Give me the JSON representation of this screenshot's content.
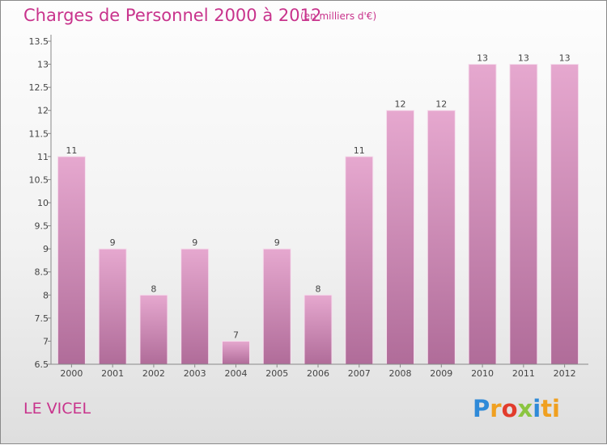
{
  "header": {
    "title": "Charges de Personnel 2000 à 2012",
    "subtitle": "(en milliers d'€)"
  },
  "footer": {
    "commune": "LE VICEL",
    "logo_letters": [
      "P",
      "r",
      "o",
      "x",
      "i",
      "ti"
    ]
  },
  "colors": {
    "text_accent": "#c8338c",
    "bar_top": "#e6a8cf",
    "bar_bottom": "#b06c99"
  },
  "chart_data": {
    "type": "bar",
    "categories": [
      "2000",
      "2001",
      "2002",
      "2003",
      "2004",
      "2005",
      "2006",
      "2007",
      "2008",
      "2009",
      "2010",
      "2011",
      "2012"
    ],
    "values": [
      11,
      9,
      8,
      9,
      7,
      9,
      8,
      11,
      12,
      12,
      13,
      13,
      13
    ],
    "data_labels": [
      "11",
      "9",
      "8",
      "9",
      "7",
      "9",
      "8",
      "11",
      "12",
      "12",
      "13",
      "13",
      "13"
    ],
    "ylim": [
      6.5,
      13.5
    ],
    "yticks": [
      6.5,
      7,
      7.5,
      8,
      8.5,
      9,
      9.5,
      10,
      10.5,
      11,
      11.5,
      12,
      12.5,
      13,
      13.5
    ],
    "ytick_labels": [
      "6.5",
      "7",
      "7.5",
      "8",
      "8.5",
      "9",
      "9.5",
      "10",
      "10.5",
      "11",
      "11.5",
      "12",
      "12.5",
      "13",
      "13.5"
    ],
    "grid": false,
    "xlabel": "",
    "ylabel": ""
  }
}
